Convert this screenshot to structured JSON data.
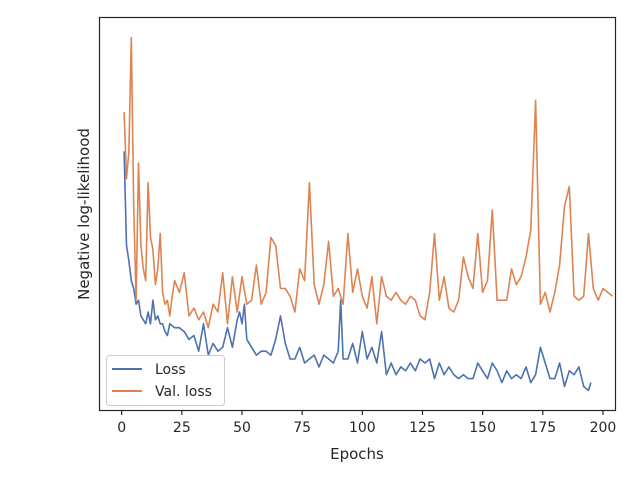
{
  "chart_data": {
    "type": "line",
    "title": "",
    "xlabel": "Epochs",
    "ylabel": "Negative log-likelihood",
    "xlim": [
      -9,
      205
    ],
    "ylim": [
      0,
      1
    ],
    "y_tick_labels_shown": false,
    "x_ticks": [
      0,
      25,
      50,
      75,
      100,
      125,
      150,
      175,
      200
    ],
    "x_tick_labels": [
      "0",
      "25",
      "50",
      "75",
      "100",
      "125",
      "150",
      "175",
      "200"
    ],
    "grid": false,
    "legend_position": "lower-left",
    "series": [
      {
        "name": "Loss",
        "color": "#4c72b0",
        "points": [
          [
            1,
            0.66
          ],
          [
            2,
            0.42
          ],
          [
            3,
            0.38
          ],
          [
            4,
            0.33
          ],
          [
            5,
            0.31
          ],
          [
            6,
            0.27
          ],
          [
            7,
            0.28
          ],
          [
            8,
            0.24
          ],
          [
            9,
            0.23
          ],
          [
            10,
            0.22
          ],
          [
            11,
            0.25
          ],
          [
            12,
            0.22
          ],
          [
            13,
            0.28
          ],
          [
            14,
            0.23
          ],
          [
            15,
            0.24
          ],
          [
            16,
            0.22
          ],
          [
            17,
            0.22
          ],
          [
            18,
            0.2
          ],
          [
            19,
            0.19
          ],
          [
            20,
            0.22
          ],
          [
            22,
            0.21
          ],
          [
            24,
            0.21
          ],
          [
            26,
            0.2
          ],
          [
            28,
            0.18
          ],
          [
            30,
            0.19
          ],
          [
            32,
            0.15
          ],
          [
            34,
            0.22
          ],
          [
            36,
            0.14
          ],
          [
            38,
            0.17
          ],
          [
            40,
            0.15
          ],
          [
            42,
            0.16
          ],
          [
            44,
            0.21
          ],
          [
            46,
            0.16
          ],
          [
            48,
            0.23
          ],
          [
            49,
            0.25
          ],
          [
            50,
            0.22
          ],
          [
            51,
            0.27
          ],
          [
            52,
            0.18
          ],
          [
            54,
            0.16
          ],
          [
            56,
            0.14
          ],
          [
            58,
            0.15
          ],
          [
            60,
            0.15
          ],
          [
            62,
            0.14
          ],
          [
            64,
            0.18
          ],
          [
            66,
            0.24
          ],
          [
            68,
            0.17
          ],
          [
            70,
            0.13
          ],
          [
            72,
            0.13
          ],
          [
            74,
            0.16
          ],
          [
            76,
            0.12
          ],
          [
            78,
            0.13
          ],
          [
            80,
            0.14
          ],
          [
            82,
            0.11
          ],
          [
            84,
            0.14
          ],
          [
            86,
            0.13
          ],
          [
            88,
            0.12
          ],
          [
            90,
            0.15
          ],
          [
            91,
            0.28
          ],
          [
            92,
            0.13
          ],
          [
            94,
            0.13
          ],
          [
            96,
            0.17
          ],
          [
            98,
            0.12
          ],
          [
            100,
            0.2
          ],
          [
            102,
            0.13
          ],
          [
            104,
            0.16
          ],
          [
            106,
            0.12
          ],
          [
            108,
            0.2
          ],
          [
            110,
            0.09
          ],
          [
            112,
            0.12
          ],
          [
            114,
            0.09
          ],
          [
            116,
            0.11
          ],
          [
            118,
            0.1
          ],
          [
            120,
            0.12
          ],
          [
            122,
            0.1
          ],
          [
            124,
            0.13
          ],
          [
            126,
            0.12
          ],
          [
            128,
            0.13
          ],
          [
            130,
            0.08
          ],
          [
            132,
            0.12
          ],
          [
            134,
            0.09
          ],
          [
            136,
            0.11
          ],
          [
            138,
            0.09
          ],
          [
            140,
            0.08
          ],
          [
            142,
            0.09
          ],
          [
            144,
            0.08
          ],
          [
            146,
            0.08
          ],
          [
            148,
            0.12
          ],
          [
            150,
            0.1
          ],
          [
            152,
            0.08
          ],
          [
            154,
            0.12
          ],
          [
            156,
            0.1
          ],
          [
            158,
            0.07
          ],
          [
            160,
            0.1
          ],
          [
            162,
            0.08
          ],
          [
            164,
            0.09
          ],
          [
            166,
            0.08
          ],
          [
            168,
            0.11
          ],
          [
            170,
            0.07
          ],
          [
            172,
            0.09
          ],
          [
            174,
            0.16
          ],
          [
            176,
            0.12
          ],
          [
            178,
            0.08
          ],
          [
            180,
            0.08
          ],
          [
            182,
            0.12
          ],
          [
            184,
            0.06
          ],
          [
            186,
            0.1
          ],
          [
            188,
            0.09
          ],
          [
            190,
            0.11
          ],
          [
            192,
            0.06
          ],
          [
            194,
            0.05
          ],
          [
            195,
            0.07
          ]
        ]
      },
      {
        "name": "Val. loss",
        "color": "#dd8452",
        "points": [
          [
            1,
            0.76
          ],
          [
            2,
            0.59
          ],
          [
            3,
            0.66
          ],
          [
            4,
            0.95
          ],
          [
            5,
            0.52
          ],
          [
            6,
            0.28
          ],
          [
            7,
            0.63
          ],
          [
            8,
            0.42
          ],
          [
            9,
            0.36
          ],
          [
            10,
            0.33
          ],
          [
            11,
            0.58
          ],
          [
            12,
            0.44
          ],
          [
            13,
            0.41
          ],
          [
            14,
            0.32
          ],
          [
            15,
            0.36
          ],
          [
            16,
            0.45
          ],
          [
            17,
            0.3
          ],
          [
            18,
            0.27
          ],
          [
            19,
            0.28
          ],
          [
            20,
            0.24
          ],
          [
            21,
            0.29
          ],
          [
            22,
            0.33
          ],
          [
            24,
            0.3
          ],
          [
            26,
            0.35
          ],
          [
            28,
            0.24
          ],
          [
            30,
            0.26
          ],
          [
            32,
            0.23
          ],
          [
            34,
            0.25
          ],
          [
            36,
            0.21
          ],
          [
            38,
            0.27
          ],
          [
            40,
            0.25
          ],
          [
            42,
            0.35
          ],
          [
            44,
            0.22
          ],
          [
            46,
            0.34
          ],
          [
            48,
            0.25
          ],
          [
            50,
            0.34
          ],
          [
            52,
            0.27
          ],
          [
            54,
            0.28
          ],
          [
            56,
            0.37
          ],
          [
            58,
            0.27
          ],
          [
            60,
            0.3
          ],
          [
            62,
            0.44
          ],
          [
            64,
            0.42
          ],
          [
            66,
            0.31
          ],
          [
            68,
            0.31
          ],
          [
            70,
            0.29
          ],
          [
            72,
            0.25
          ],
          [
            74,
            0.36
          ],
          [
            76,
            0.33
          ],
          [
            78,
            0.58
          ],
          [
            80,
            0.32
          ],
          [
            82,
            0.27
          ],
          [
            84,
            0.32
          ],
          [
            86,
            0.43
          ],
          [
            88,
            0.29
          ],
          [
            90,
            0.31
          ],
          [
            92,
            0.27
          ],
          [
            94,
            0.45
          ],
          [
            96,
            0.3
          ],
          [
            98,
            0.36
          ],
          [
            100,
            0.29
          ],
          [
            102,
            0.26
          ],
          [
            104,
            0.34
          ],
          [
            106,
            0.22
          ],
          [
            108,
            0.34
          ],
          [
            110,
            0.29
          ],
          [
            112,
            0.28
          ],
          [
            114,
            0.3
          ],
          [
            116,
            0.28
          ],
          [
            118,
            0.27
          ],
          [
            120,
            0.29
          ],
          [
            122,
            0.28
          ],
          [
            124,
            0.24
          ],
          [
            126,
            0.23
          ],
          [
            128,
            0.3
          ],
          [
            130,
            0.45
          ],
          [
            132,
            0.28
          ],
          [
            134,
            0.34
          ],
          [
            136,
            0.26
          ],
          [
            138,
            0.25
          ],
          [
            140,
            0.28
          ],
          [
            142,
            0.39
          ],
          [
            144,
            0.34
          ],
          [
            146,
            0.31
          ],
          [
            148,
            0.45
          ],
          [
            150,
            0.3
          ],
          [
            152,
            0.33
          ],
          [
            154,
            0.51
          ],
          [
            156,
            0.28
          ],
          [
            158,
            0.28
          ],
          [
            160,
            0.28
          ],
          [
            162,
            0.36
          ],
          [
            164,
            0.32
          ],
          [
            166,
            0.34
          ],
          [
            168,
            0.39
          ],
          [
            170,
            0.46
          ],
          [
            172,
            0.79
          ],
          [
            174,
            0.27
          ],
          [
            176,
            0.3
          ],
          [
            178,
            0.25
          ],
          [
            180,
            0.3
          ],
          [
            182,
            0.37
          ],
          [
            184,
            0.52
          ],
          [
            186,
            0.57
          ],
          [
            188,
            0.29
          ],
          [
            190,
            0.28
          ],
          [
            192,
            0.29
          ],
          [
            194,
            0.45
          ],
          [
            196,
            0.31
          ],
          [
            198,
            0.28
          ],
          [
            200,
            0.31
          ],
          [
            202,
            0.3
          ],
          [
            204,
            0.29
          ]
        ]
      }
    ]
  }
}
